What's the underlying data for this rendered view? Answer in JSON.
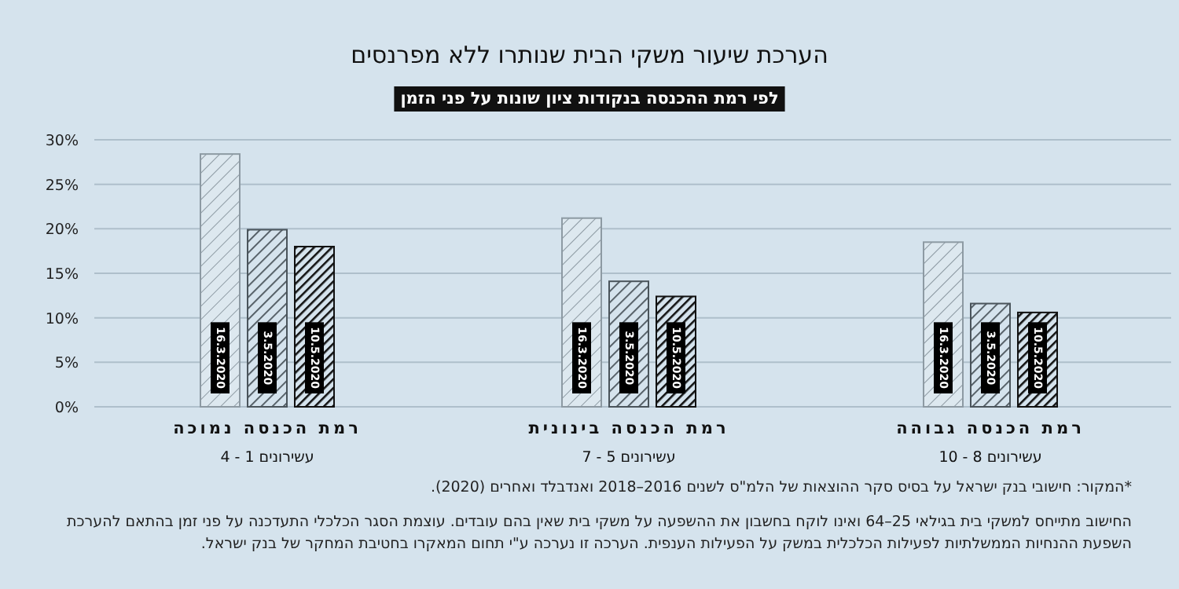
{
  "chart_data": {
    "type": "bar",
    "title": "הערכת שיעור משקי הבית שנותרו ללא מפרנסים",
    "subtitle": "לפי רמת ההכנסה בנקודות ציון שונות על פני הזמן",
    "categories": [
      "רמת הכנסה נמוכה",
      "רמת הכנסה בינונית",
      "רמת הכנסה גבוהה"
    ],
    "series": [
      {
        "name": "16.3.2020",
        "color": "#8d9aa3",
        "values": [
          28.4,
          21.2,
          18.5
        ]
      },
      {
        "name": "3.5.2020",
        "color": "#4a545b",
        "values": [
          19.9,
          14.1,
          11.6
        ]
      },
      {
        "name": "10.5.2020",
        "color": "#111111",
        "values": [
          18.0,
          12.4,
          10.6
        ]
      }
    ],
    "ylim": [
      0,
      30
    ],
    "yticks": [
      {
        "value": 0,
        "label": "0%"
      },
      {
        "value": 5,
        "label": "5%"
      },
      {
        "value": 10,
        "label": "10%"
      },
      {
        "value": 15,
        "label": "15%"
      },
      {
        "value": 20,
        "label": "20%"
      },
      {
        "value": 25,
        "label": "25%"
      },
      {
        "value": 30,
        "label": "30%"
      }
    ],
    "grid": "y",
    "annotations": [
      "עשירונים 1 - 4",
      "עשירונים 5 - 7",
      "עשירונים 8 - 10",
      "*המקור: חישובי בנק ישראל על בסיס סקר ההוצאות של הלמ\"ס לשנים 2016–2018 ואנדבלד ואחרים (2020).",
      "החישוב מתייחס למשקי בית בגילאי 25–64 ואינו לוקח בחשבון את ההשפעה על משקי בית שאין בהם עובדים. עוצמת הסגר הכלכלי התעדכנה על פני זמן בהתאם להערכת השפעת ההנחיות הממשלתיות לפעילות הכלכלית במשק על הפעילות הענפית. הערכה זו נערכה ע\"י תחום המאקרו בחטיבת המחקר של בנק ישראל."
    ]
  }
}
